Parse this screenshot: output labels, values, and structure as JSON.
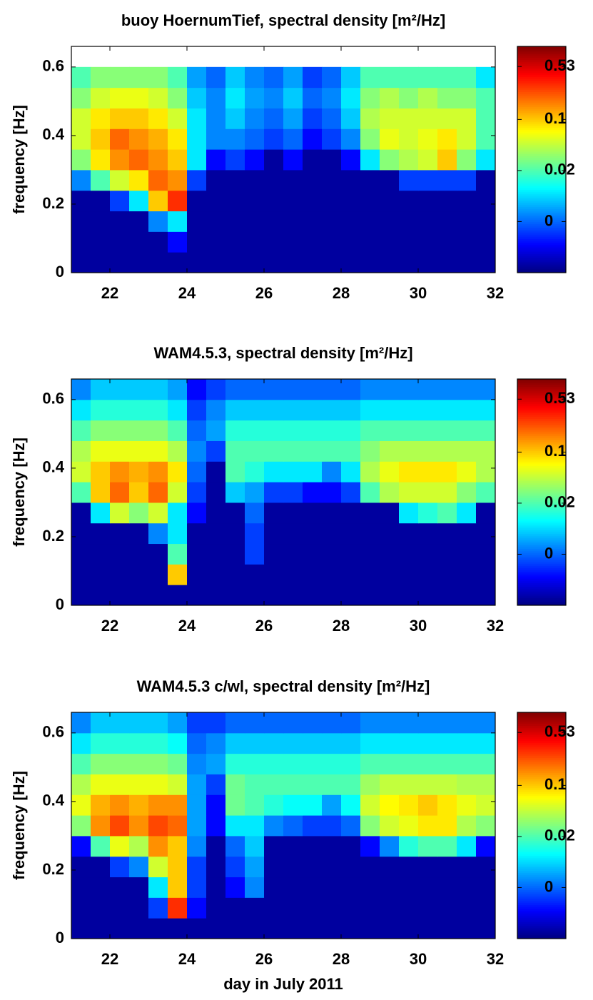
{
  "chart_data": [
    {
      "type": "heatmap",
      "title": "buoy HoernumTief, spectral density [m²/Hz]",
      "ylabel": "frequency [Hz]",
      "xlim": [
        21,
        32
      ],
      "xticks": [
        22,
        24,
        26,
        28,
        30,
        32
      ],
      "ylim": [
        0,
        0.66
      ],
      "yticks": [
        0,
        0.2,
        0.4,
        0.6
      ],
      "x": [
        21.25,
        21.75,
        22.25,
        22.75,
        23.25,
        23.75,
        24.25,
        24.75,
        25.25,
        25.75,
        26.25,
        26.75,
        27.25,
        27.75,
        28.25,
        28.75,
        29.25,
        29.75,
        30.25,
        30.75,
        31.25,
        31.75
      ],
      "y": [
        0.03,
        0.09,
        0.15,
        0.21,
        0.27,
        0.33,
        0.39,
        0.45,
        0.51,
        0.57,
        0.63
      ],
      "z": [
        [
          0.001,
          0.001,
          0.001,
          0.001,
          0.001,
          0.001,
          0.001,
          0.001,
          0.001,
          0.001,
          0.001,
          0.001,
          0.001,
          0.001,
          0.001,
          0.001,
          0.001,
          0.001,
          0.001,
          0.001,
          0.001,
          0.001
        ],
        [
          0.001,
          0.001,
          0.001,
          0.001,
          0.001,
          0.002,
          0.001,
          0.001,
          0.001,
          0.001,
          0.001,
          0.001,
          0.001,
          0.001,
          0.001,
          0.001,
          0.001,
          0.001,
          0.001,
          0.001,
          0.001,
          0.001
        ],
        [
          0.001,
          0.001,
          0.001,
          0.001,
          0.005,
          0.01,
          0.001,
          0.001,
          0.001,
          0.001,
          0.001,
          0.001,
          0.001,
          0.001,
          0.001,
          0.001,
          0.001,
          0.001,
          0.001,
          0.001,
          0.001,
          0.001
        ],
        [
          0.001,
          0.001,
          0.003,
          0.01,
          0.1,
          0.3,
          0.001,
          0.001,
          0.001,
          0.001,
          0.001,
          0.001,
          0.001,
          0.001,
          0.001,
          0.001,
          0.001,
          0.001,
          0.001,
          0.001,
          0.001,
          0.001
        ],
        [
          0.005,
          0.02,
          0.05,
          0.08,
          0.2,
          0.15,
          0.003,
          0.001,
          0.001,
          0.001,
          0.001,
          0.001,
          0.001,
          0.001,
          0.001,
          0.001,
          0.001,
          0.003,
          0.003,
          0.003,
          0.003,
          0.001
        ],
        [
          0.03,
          0.08,
          0.15,
          0.2,
          0.15,
          0.1,
          0.01,
          0.002,
          0.003,
          0.002,
          0.001,
          0.002,
          0.001,
          0.001,
          0.002,
          0.01,
          0.03,
          0.04,
          0.05,
          0.1,
          0.03,
          0.01
        ],
        [
          0.05,
          0.1,
          0.2,
          0.15,
          0.12,
          0.08,
          0.01,
          0.005,
          0.005,
          0.004,
          0.003,
          0.004,
          0.002,
          0.003,
          0.005,
          0.03,
          0.06,
          0.05,
          0.06,
          0.08,
          0.05,
          0.02
        ],
        [
          0.05,
          0.08,
          0.1,
          0.1,
          0.08,
          0.05,
          0.01,
          0.005,
          0.008,
          0.005,
          0.004,
          0.006,
          0.003,
          0.004,
          0.008,
          0.04,
          0.05,
          0.05,
          0.05,
          0.05,
          0.05,
          0.02
        ],
        [
          0.03,
          0.05,
          0.06,
          0.06,
          0.05,
          0.03,
          0.008,
          0.005,
          0.01,
          0.006,
          0.005,
          0.008,
          0.004,
          0.005,
          0.01,
          0.03,
          0.04,
          0.03,
          0.04,
          0.03,
          0.03,
          0.02
        ],
        [
          0.02,
          0.03,
          0.03,
          0.03,
          0.03,
          0.02,
          0.006,
          0.004,
          0.008,
          0.005,
          0.004,
          0.006,
          0.003,
          0.004,
          0.008,
          0.02,
          0.02,
          0.02,
          0.02,
          0.02,
          0.02,
          0.01
        ],
        [
          null,
          null,
          null,
          null,
          null,
          null,
          null,
          null,
          null,
          null,
          null,
          null,
          null,
          null,
          null,
          null,
          null,
          null,
          null,
          null,
          null,
          null
        ]
      ],
      "colorbar": {
        "lim": [
          0.0008,
          1
        ],
        "log": true,
        "ticks": [
          0.53,
          0.1,
          0.02,
          {
            "value": 0.004,
            "label": "0"
          }
        ]
      }
    },
    {
      "type": "heatmap",
      "title": "WAM4.5.3, spectral density [m²/Hz]",
      "ylabel": "frequency [Hz]",
      "xlim": [
        21,
        32
      ],
      "xticks": [
        22,
        24,
        26,
        28,
        30,
        32
      ],
      "ylim": [
        0,
        0.66
      ],
      "yticks": [
        0,
        0.2,
        0.4,
        0.6
      ],
      "x": [
        21.25,
        21.75,
        22.25,
        22.75,
        23.25,
        23.75,
        24.25,
        24.75,
        25.25,
        25.75,
        26.25,
        26.75,
        27.25,
        27.75,
        28.25,
        28.75,
        29.25,
        29.75,
        30.25,
        30.75,
        31.25,
        31.75
      ],
      "y": [
        0.03,
        0.09,
        0.15,
        0.21,
        0.27,
        0.33,
        0.39,
        0.45,
        0.51,
        0.57,
        0.63
      ],
      "z": [
        [
          0.001,
          0.001,
          0.001,
          0.001,
          0.001,
          0.001,
          0.001,
          0.001,
          0.001,
          0.001,
          0.001,
          0.001,
          0.001,
          0.001,
          0.001,
          0.001,
          0.001,
          0.001,
          0.001,
          0.001,
          0.001,
          0.001
        ],
        [
          0.001,
          0.001,
          0.001,
          0.001,
          0.001,
          0.1,
          0.001,
          0.001,
          0.001,
          0.001,
          0.001,
          0.001,
          0.001,
          0.001,
          0.001,
          0.001,
          0.001,
          0.001,
          0.001,
          0.001,
          0.001,
          0.001
        ],
        [
          0.001,
          0.001,
          0.001,
          0.001,
          0.001,
          0.02,
          0.001,
          0.001,
          0.001,
          0.003,
          0.001,
          0.001,
          0.001,
          0.001,
          0.001,
          0.001,
          0.001,
          0.001,
          0.001,
          0.001,
          0.001,
          0.001
        ],
        [
          0.001,
          0.001,
          0.001,
          0.001,
          0.005,
          0.01,
          0.001,
          0.001,
          0.001,
          0.003,
          0.001,
          0.001,
          0.001,
          0.001,
          0.001,
          0.001,
          0.001,
          0.001,
          0.001,
          0.001,
          0.001,
          0.001
        ],
        [
          0.001,
          0.01,
          0.05,
          0.03,
          0.05,
          0.01,
          0.002,
          0.001,
          0.001,
          0.004,
          0.001,
          0.001,
          0.001,
          0.001,
          0.001,
          0.001,
          0.001,
          0.01,
          0.015,
          0.02,
          0.01,
          0.001
        ],
        [
          0.02,
          0.1,
          0.2,
          0.1,
          0.2,
          0.05,
          0.003,
          0.001,
          0.008,
          0.006,
          0.003,
          0.003,
          0.002,
          0.002,
          0.003,
          0.02,
          0.04,
          0.05,
          0.05,
          0.05,
          0.03,
          0.02
        ],
        [
          0.05,
          0.1,
          0.15,
          0.12,
          0.15,
          0.08,
          0.004,
          0.001,
          0.02,
          0.015,
          0.01,
          0.01,
          0.01,
          0.005,
          0.01,
          0.04,
          0.06,
          0.08,
          0.08,
          0.08,
          0.06,
          0.04
        ],
        [
          0.04,
          0.06,
          0.06,
          0.06,
          0.06,
          0.04,
          0.005,
          0.003,
          0.02,
          0.02,
          0.02,
          0.02,
          0.02,
          0.02,
          0.02,
          0.03,
          0.04,
          0.04,
          0.04,
          0.04,
          0.04,
          0.04
        ],
        [
          0.02,
          0.03,
          0.03,
          0.03,
          0.03,
          0.02,
          0.004,
          0.006,
          0.015,
          0.015,
          0.015,
          0.015,
          0.015,
          0.015,
          0.015,
          0.02,
          0.02,
          0.02,
          0.02,
          0.02,
          0.02,
          0.02
        ],
        [
          0.01,
          0.015,
          0.015,
          0.015,
          0.015,
          0.01,
          0.003,
          0.005,
          0.008,
          0.008,
          0.008,
          0.008,
          0.008,
          0.008,
          0.008,
          0.01,
          0.01,
          0.01,
          0.01,
          0.01,
          0.01,
          0.01
        ],
        [
          0.005,
          0.008,
          0.008,
          0.008,
          0.008,
          0.006,
          0.002,
          0.003,
          0.004,
          0.004,
          0.004,
          0.004,
          0.004,
          0.004,
          0.004,
          0.005,
          0.005,
          0.005,
          0.005,
          0.005,
          0.005,
          0.005
        ]
      ],
      "colorbar": {
        "lim": [
          0.0008,
          1
        ],
        "log": true,
        "ticks": [
          0.53,
          0.1,
          0.02,
          {
            "value": 0.004,
            "label": "0"
          }
        ]
      }
    },
    {
      "type": "heatmap",
      "title": "WAM4.5.3 c/wl, spectral density [m²/Hz]",
      "ylabel": "frequency [Hz]",
      "xlabel": "day in July 2011",
      "xlim": [
        21,
        32
      ],
      "xticks": [
        22,
        24,
        26,
        28,
        30,
        32
      ],
      "ylim": [
        0,
        0.66
      ],
      "yticks": [
        0,
        0.2,
        0.4,
        0.6
      ],
      "x": [
        21.25,
        21.75,
        22.25,
        22.75,
        23.25,
        23.75,
        24.25,
        24.75,
        25.25,
        25.75,
        26.25,
        26.75,
        27.25,
        27.75,
        28.25,
        28.75,
        29.25,
        29.75,
        30.25,
        30.75,
        31.25,
        31.75
      ],
      "y": [
        0.03,
        0.09,
        0.15,
        0.21,
        0.27,
        0.33,
        0.39,
        0.45,
        0.51,
        0.57,
        0.63
      ],
      "z": [
        [
          0.001,
          0.001,
          0.001,
          0.001,
          0.001,
          0.001,
          0.001,
          0.001,
          0.001,
          0.001,
          0.001,
          0.001,
          0.001,
          0.001,
          0.001,
          0.001,
          0.001,
          0.001,
          0.001,
          0.001,
          0.001,
          0.001
        ],
        [
          0.001,
          0.001,
          0.001,
          0.001,
          0.003,
          0.3,
          0.002,
          0.001,
          0.001,
          0.001,
          0.001,
          0.001,
          0.001,
          0.001,
          0.001,
          0.001,
          0.001,
          0.001,
          0.001,
          0.001,
          0.001,
          0.001
        ],
        [
          0.001,
          0.001,
          0.001,
          0.001,
          0.01,
          0.1,
          0.003,
          0.001,
          0.002,
          0.005,
          0.001,
          0.001,
          0.001,
          0.001,
          0.001,
          0.001,
          0.001,
          0.001,
          0.001,
          0.001,
          0.001,
          0.001
        ],
        [
          0.001,
          0.001,
          0.003,
          0.005,
          0.05,
          0.1,
          0.003,
          0.001,
          0.003,
          0.006,
          0.001,
          0.001,
          0.001,
          0.001,
          0.001,
          0.001,
          0.001,
          0.001,
          0.001,
          0.001,
          0.001,
          0.001
        ],
        [
          0.002,
          0.02,
          0.06,
          0.04,
          0.15,
          0.1,
          0.005,
          0.001,
          0.004,
          0.008,
          0.001,
          0.001,
          0.001,
          0.001,
          0.001,
          0.002,
          0.005,
          0.015,
          0.02,
          0.02,
          0.01,
          0.002
        ],
        [
          0.03,
          0.15,
          0.25,
          0.15,
          0.25,
          0.2,
          0.006,
          0.002,
          0.01,
          0.01,
          0.005,
          0.004,
          0.003,
          0.003,
          0.004,
          0.03,
          0.05,
          0.06,
          0.08,
          0.08,
          0.04,
          0.03
        ],
        [
          0.06,
          0.12,
          0.15,
          0.12,
          0.15,
          0.15,
          0.006,
          0.002,
          0.025,
          0.02,
          0.015,
          0.012,
          0.012,
          0.006,
          0.012,
          0.05,
          0.07,
          0.08,
          0.1,
          0.08,
          0.06,
          0.05
        ],
        [
          0.04,
          0.06,
          0.06,
          0.06,
          0.06,
          0.05,
          0.006,
          0.003,
          0.025,
          0.02,
          0.02,
          0.02,
          0.02,
          0.02,
          0.02,
          0.035,
          0.045,
          0.045,
          0.045,
          0.045,
          0.04,
          0.04
        ],
        [
          0.02,
          0.03,
          0.03,
          0.03,
          0.03,
          0.025,
          0.005,
          0.006,
          0.015,
          0.015,
          0.015,
          0.015,
          0.015,
          0.015,
          0.015,
          0.02,
          0.02,
          0.02,
          0.02,
          0.02,
          0.02,
          0.02
        ],
        [
          0.01,
          0.015,
          0.015,
          0.015,
          0.015,
          0.012,
          0.004,
          0.005,
          0.008,
          0.008,
          0.008,
          0.008,
          0.008,
          0.008,
          0.008,
          0.01,
          0.01,
          0.01,
          0.01,
          0.01,
          0.01,
          0.01
        ],
        [
          0.005,
          0.008,
          0.008,
          0.008,
          0.008,
          0.006,
          0.003,
          0.003,
          0.004,
          0.004,
          0.004,
          0.004,
          0.004,
          0.004,
          0.004,
          0.005,
          0.005,
          0.005,
          0.005,
          0.005,
          0.005,
          0.005
        ]
      ],
      "colorbar": {
        "lim": [
          0.0008,
          1
        ],
        "log": true,
        "ticks": [
          0.53,
          0.1,
          0.02,
          {
            "value": 0.004,
            "label": "0"
          }
        ]
      }
    }
  ]
}
